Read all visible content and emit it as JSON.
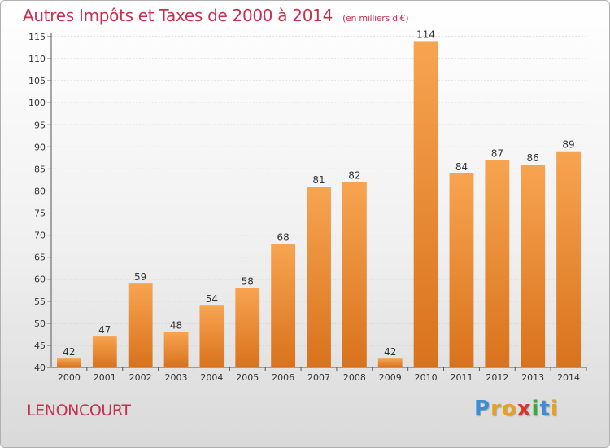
{
  "chart_data": {
    "type": "bar",
    "title": "Autres Impôts et Taxes de 2000 à 2014",
    "subtitle": "(en milliers d'€)",
    "categories": [
      "2000",
      "2001",
      "2002",
      "2003",
      "2004",
      "2005",
      "2006",
      "2007",
      "2008",
      "2009",
      "2010",
      "2011",
      "2012",
      "2013",
      "2014"
    ],
    "values": [
      42,
      47,
      59,
      48,
      54,
      58,
      68,
      81,
      82,
      42,
      114,
      84,
      87,
      86,
      89
    ],
    "ylim": [
      40,
      115
    ],
    "yticks": [
      40,
      45,
      50,
      55,
      60,
      65,
      70,
      75,
      80,
      85,
      90,
      95,
      100,
      105,
      110,
      115
    ],
    "grid": true,
    "bar_color": "#f0913a"
  },
  "location": "LENONCOURT",
  "logo": {
    "letters": [
      "P",
      "r",
      "o",
      "x",
      "i",
      "t",
      "i"
    ],
    "colors": [
      "#3b8ed6",
      "#e8a020",
      "#e8a020",
      "#d03a2a",
      "#3aaa3a",
      "#3b8ed6",
      "#e8a020"
    ]
  }
}
